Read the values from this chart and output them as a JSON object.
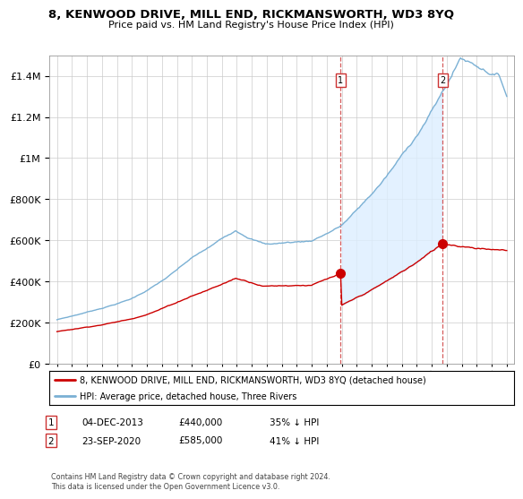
{
  "title": "8, KENWOOD DRIVE, MILL END, RICKMANSWORTH, WD3 8YQ",
  "subtitle": "Price paid vs. HM Land Registry's House Price Index (HPI)",
  "legend_label_red": "8, KENWOOD DRIVE, MILL END, RICKMANSWORTH, WD3 8YQ (detached house)",
  "legend_label_blue": "HPI: Average price, detached house, Three Rivers",
  "annotation1": {
    "label": "1",
    "date": 2013.92,
    "price": 440000
  },
  "annotation2": {
    "label": "2",
    "date": 2020.72,
    "price": 585000
  },
  "table_row1": [
    "1",
    "04-DEC-2013",
    "£440,000",
    "35% ↓ HPI"
  ],
  "table_row2": [
    "2",
    "23-SEP-2020",
    "£585,000",
    "41% ↓ HPI"
  ],
  "footer": "Contains HM Land Registry data © Crown copyright and database right 2024.\nThis data is licensed under the Open Government Licence v3.0.",
  "ylim": [
    0,
    1500000
  ],
  "xlim": [
    1994.5,
    2025.5
  ],
  "red_color": "#cc0000",
  "blue_color": "#7ab0d4",
  "shade_color": "#ddeeff",
  "background_color": "#ffffff",
  "grid_color": "#cccccc",
  "yticks": [
    0,
    200000,
    400000,
    600000,
    800000,
    1000000,
    1200000,
    1400000
  ],
  "xticks": [
    1995,
    1996,
    1997,
    1998,
    1999,
    2000,
    2001,
    2002,
    2003,
    2004,
    2005,
    2006,
    2007,
    2008,
    2009,
    2010,
    2011,
    2012,
    2013,
    2014,
    2015,
    2016,
    2017,
    2018,
    2019,
    2020,
    2021,
    2022,
    2023,
    2024,
    2025
  ]
}
